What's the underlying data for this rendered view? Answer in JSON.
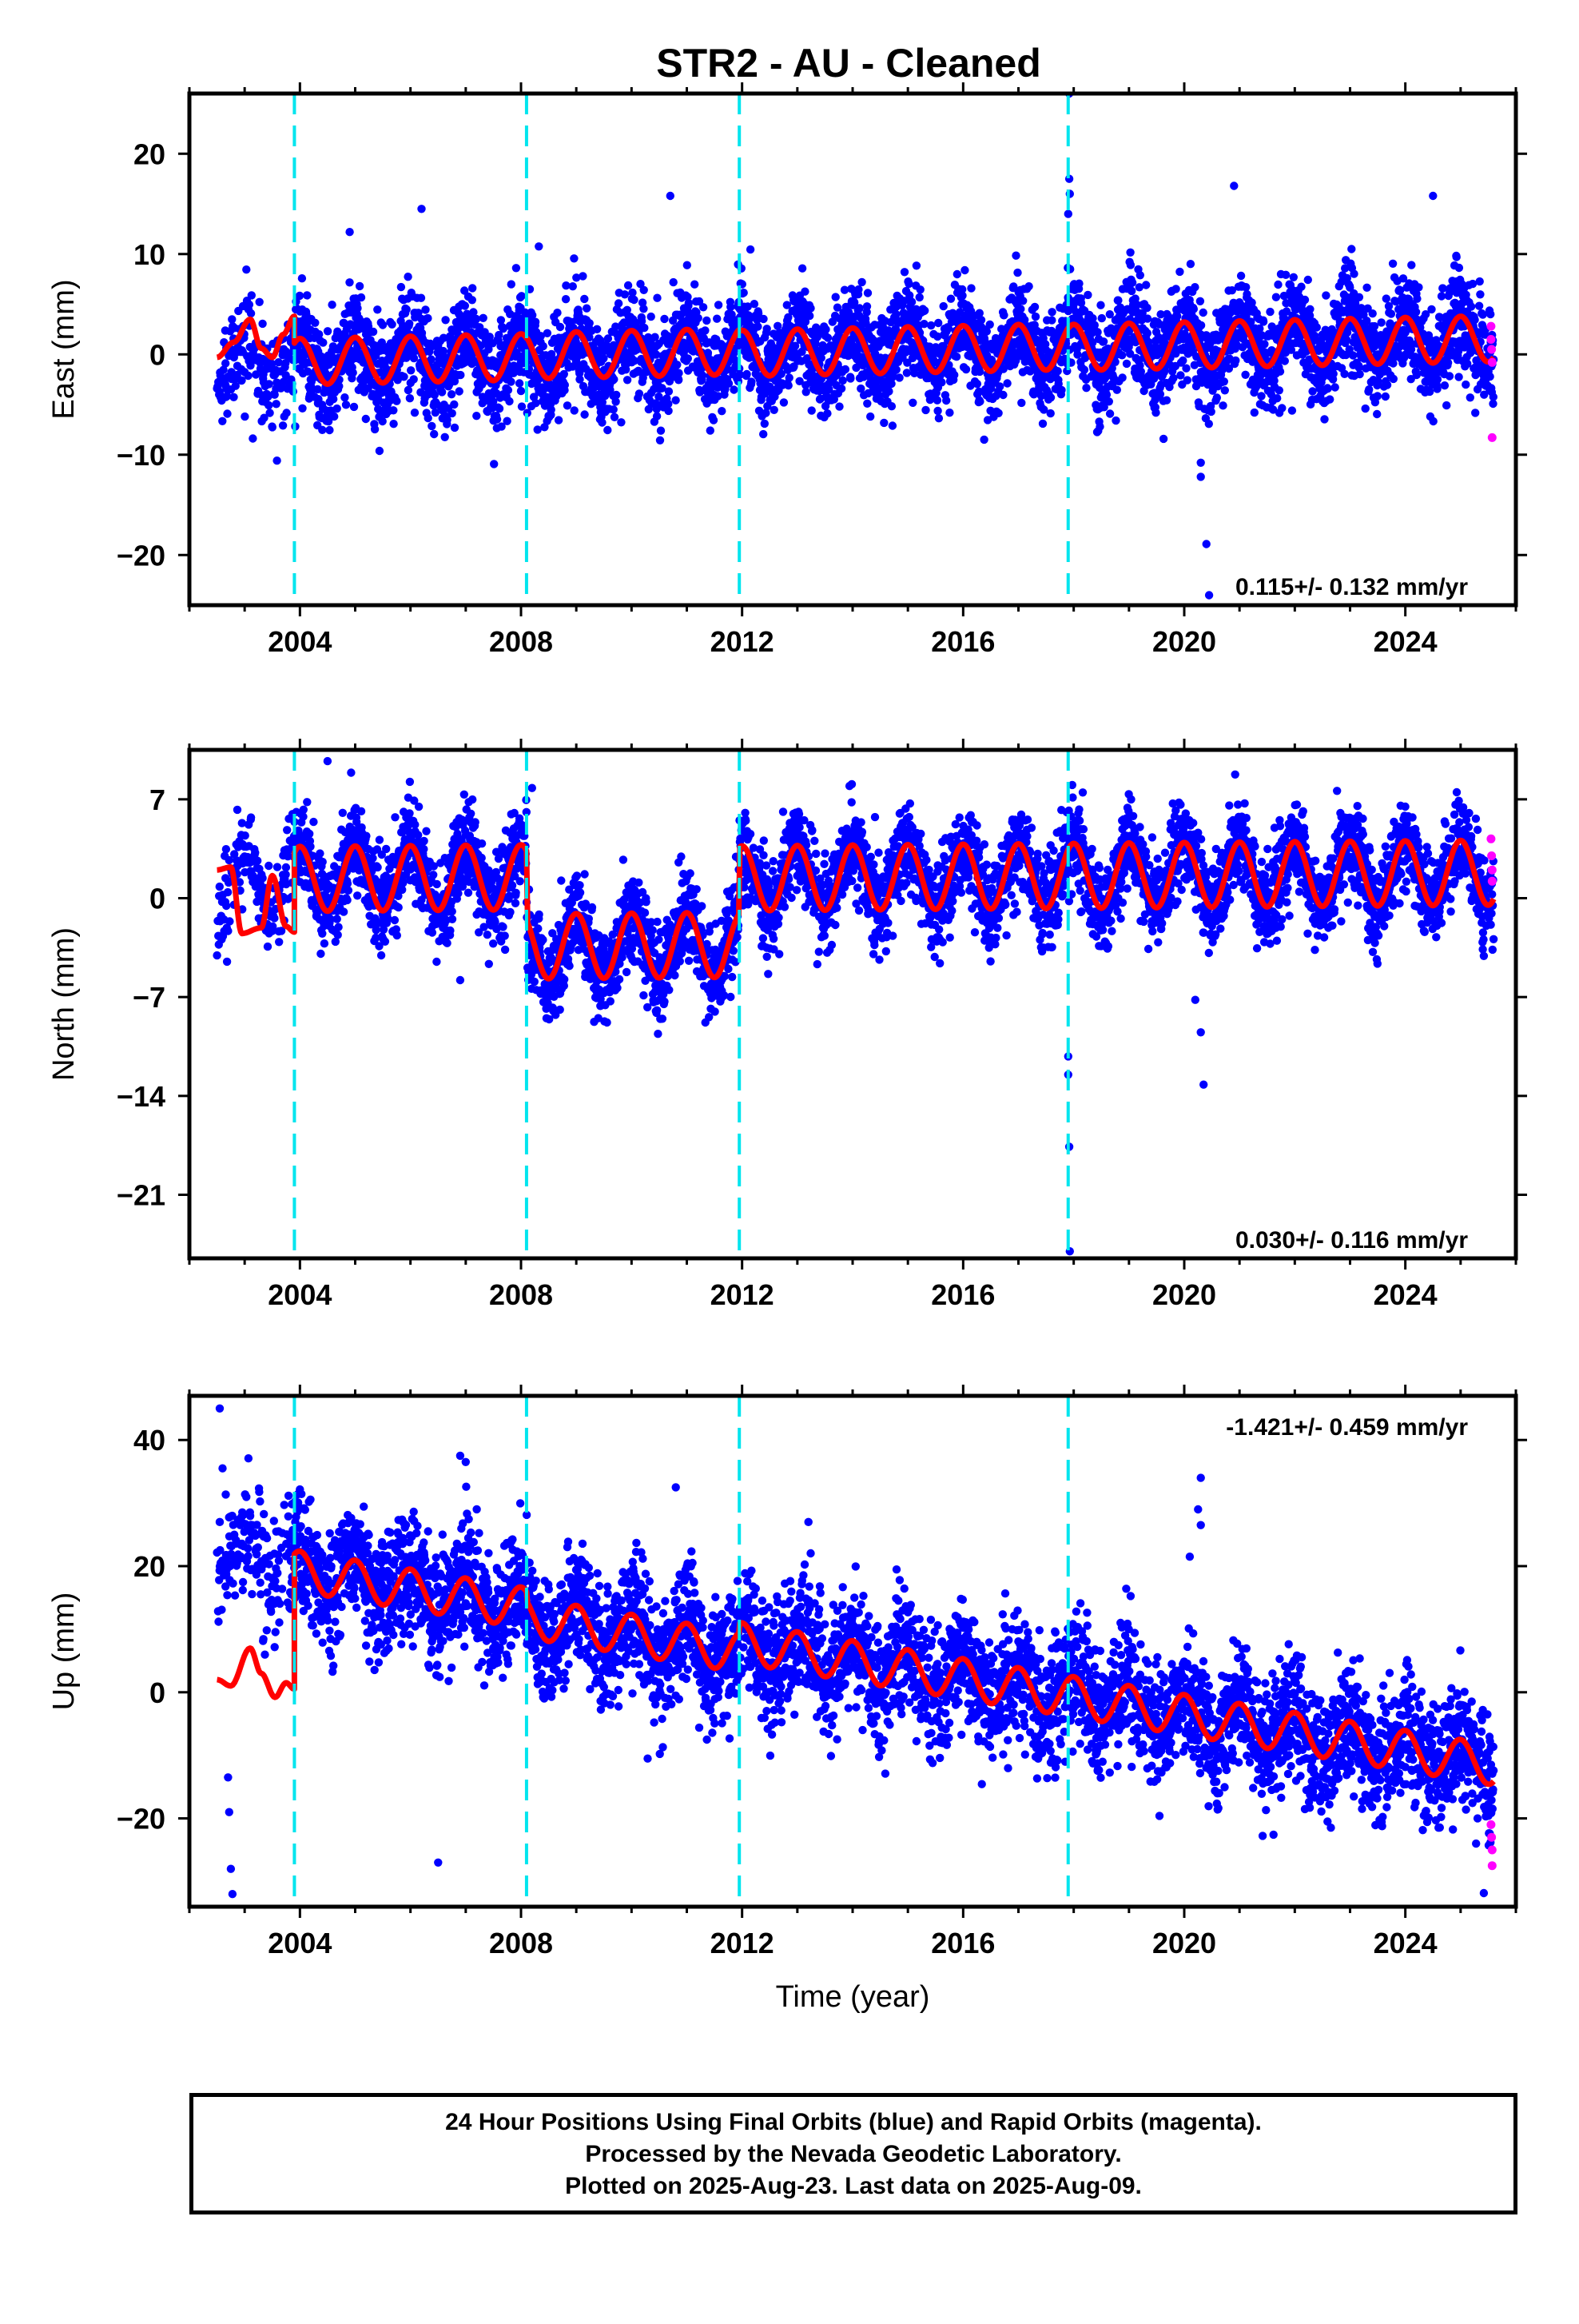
{
  "title": "STR2  - AU - Cleaned",
  "xlabel": "Time (year)",
  "x_ticks": [
    "2004",
    "2008",
    "2012",
    "2016",
    "2020",
    "2024"
  ],
  "notes": [
    "24 Hour Positions Using Final Orbits (blue) and Rapid Orbits (magenta).",
    "Processed by the Nevada Geodetic Laboratory.",
    "Plotted on 2025-Aug-23. Last data on 2025-Aug-09."
  ],
  "colors": {
    "final": "#0000ff",
    "rapid": "#ff00ff",
    "model": "#ff0000",
    "breaks": "#00e5ee"
  },
  "chart_data": [
    {
      "type": "scatter",
      "name": "east",
      "ylabel": "East (mm)",
      "rate": "0.115+/- 0.132 mm/yr",
      "xlim": [
        2002.0,
        2026.0
      ],
      "ylim": [
        -25,
        26
      ],
      "yticks": [
        -20,
        -10,
        0,
        10,
        20
      ],
      "y_tick_labels": [
        "−20",
        "−10",
        "0",
        "10",
        "20"
      ],
      "breaks": [
        2003.9,
        2008.1,
        2011.95,
        2017.9
      ],
      "start": 2002.5,
      "end": 2025.6,
      "trend": 0.115,
      "offset": 0.0,
      "amplitude": 2.3,
      "noise": 2.5,
      "segment_offsets": [
        0.0,
        0.2,
        0.3,
        0.1,
        0.0
      ],
      "outliers": [
        [
          2017.92,
          26.0
        ],
        [
          2017.92,
          17.5
        ],
        [
          2017.93,
          16.0
        ],
        [
          2017.9,
          14.0
        ],
        [
          2010.7,
          15.8
        ],
        [
          2006.2,
          14.5
        ],
        [
          2004.9,
          12.2
        ],
        [
          2020.9,
          16.8
        ],
        [
          2024.5,
          15.8
        ],
        [
          2020.3,
          -10.8
        ],
        [
          2020.3,
          -12.2
        ],
        [
          2020.4,
          -18.9
        ],
        [
          2020.45,
          -24.0
        ],
        [
          2008.3,
          -7.5
        ],
        [
          2006.8,
          -7.3
        ]
      ],
      "rapid_points": [
        [
          2025.55,
          2.8
        ],
        [
          2025.55,
          1.5
        ],
        [
          2025.56,
          0.5
        ],
        [
          2025.57,
          -0.8
        ],
        [
          2025.57,
          -8.3
        ]
      ],
      "model_pre_x": [
        2002.5,
        2002.8,
        2003.1,
        2003.3,
        2003.5,
        2003.7,
        2003.9
      ],
      "model_pre_y": [
        -0.3,
        1.2,
        3.5,
        0.6,
        -0.3,
        2.0,
        3.8
      ]
    },
    {
      "type": "scatter",
      "name": "north",
      "ylabel": "North (mm)",
      "rate": "0.030+/- 0.116 mm/yr",
      "xlim": [
        2002.0,
        2026.0
      ],
      "ylim": [
        -25.5,
        10.5
      ],
      "yticks": [
        -21,
        -14,
        -7,
        0,
        7
      ],
      "y_tick_labels": [
        "−21",
        "−14",
        "−7",
        "0",
        "7"
      ],
      "breaks": [
        2003.9,
        2008.1,
        2011.95,
        2017.9
      ],
      "start": 2002.5,
      "end": 2025.6,
      "trend": 0.03,
      "offset": 0.0,
      "amplitude": 2.3,
      "noise": 1.6,
      "segment_offsets": [
        1.4,
        1.6,
        -3.3,
        1.4,
        1.4
      ],
      "outliers": [
        [
          2004.5,
          9.7
        ],
        [
          2008.2,
          7.8
        ],
        [
          2017.9,
          -11.2
        ],
        [
          2017.9,
          -12.5
        ],
        [
          2017.92,
          -17.6
        ],
        [
          2017.93,
          -25.0
        ],
        [
          2020.2,
          -7.2
        ],
        [
          2020.3,
          -9.5
        ],
        [
          2020.35,
          -13.2
        ],
        [
          2006.9,
          -5.8
        ]
      ],
      "rapid_points": [
        [
          2025.55,
          4.2
        ],
        [
          2025.56,
          3.0
        ],
        [
          2025.57,
          2.0
        ],
        [
          2025.57,
          1.2
        ]
      ],
      "model_pre_x": [
        2002.5,
        2002.75,
        2002.95,
        2003.3,
        2003.5,
        2003.75,
        2003.9
      ],
      "model_pre_y": [
        2.0,
        2.2,
        -2.5,
        -2.1,
        1.6,
        -2.0,
        -2.4
      ]
    },
    {
      "type": "scatter",
      "name": "up",
      "ylabel": "Up (mm)",
      "rate": "-1.421+/- 0.459 mm/yr",
      "xlim": [
        2002.0,
        2026.0
      ],
      "ylim": [
        -34,
        47
      ],
      "yticks": [
        -20,
        0,
        20,
        40
      ],
      "y_tick_labels": [
        "−20",
        "0",
        "20",
        "40"
      ],
      "breaks": [
        2003.9,
        2008.1,
        2011.95,
        2017.9
      ],
      "start": 2002.5,
      "end": 2025.6,
      "trend": -1.421,
      "offset": 2.8,
      "amplitude": 3.2,
      "noise": 4.8,
      "segment_offsets": [
        6.0,
        5.0,
        3.5,
        5.0,
        5.0
      ],
      "outliers": [
        [
          2002.55,
          45.0
        ],
        [
          2002.6,
          35.5
        ],
        [
          2002.55,
          27.0
        ],
        [
          2002.62,
          20.0
        ],
        [
          2002.7,
          -13.5
        ],
        [
          2002.72,
          -19.0
        ],
        [
          2002.75,
          -28.0
        ],
        [
          2002.78,
          -32.0
        ],
        [
          2006.9,
          37.5
        ],
        [
          2007.0,
          36.5
        ],
        [
          2010.8,
          32.5
        ],
        [
          2013.2,
          27.0
        ],
        [
          2020.3,
          34.0
        ],
        [
          2020.25,
          29.0
        ],
        [
          2020.3,
          26.5
        ],
        [
          2020.1,
          21.5
        ],
        [
          2006.5,
          -27.0
        ]
      ],
      "rapid_points": [
        [
          2025.55,
          -21.0
        ],
        [
          2025.56,
          -23.0
        ],
        [
          2025.57,
          -25.0
        ],
        [
          2025.57,
          -27.5
        ]
      ],
      "model_pre_x": [
        2002.5,
        2002.75,
        2003.1,
        2003.3,
        2003.55,
        2003.75,
        2003.9
      ],
      "model_pre_y": [
        2.0,
        1.0,
        7.0,
        3.0,
        -0.8,
        1.5,
        0.5
      ]
    }
  ]
}
